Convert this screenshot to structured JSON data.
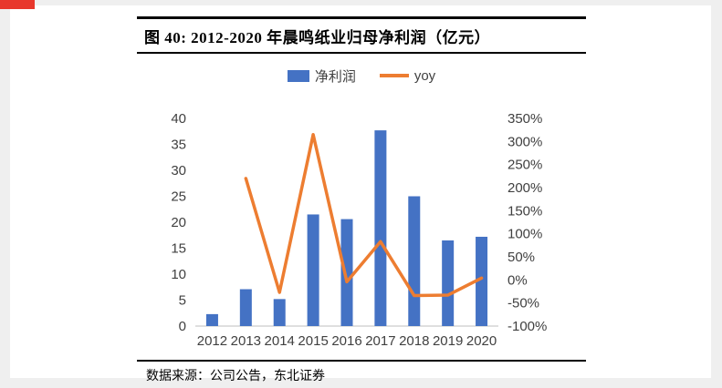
{
  "figure": {
    "title": "图 40:  2012-2020 年晨鸣纸业归母净利润（亿元）",
    "source": "数据来源：公司公告，东北证券"
  },
  "colors": {
    "bar": "#4472c4",
    "line": "#ed7d31",
    "accent_red": "#e8372c",
    "axis_text": "#404040",
    "axis_line": "#bfbfbf"
  },
  "chart_data": {
    "type": "combo",
    "title": "2012-2020 年晨鸣纸业归母净利润（亿元）",
    "categories": [
      "2012",
      "2013",
      "2014",
      "2015",
      "2016",
      "2017",
      "2018",
      "2019",
      "2020"
    ],
    "series": [
      {
        "name": "净利润",
        "type": "bar",
        "axis": "left",
        "color": "#4472c4",
        "values": [
          2.3,
          7.1,
          5.2,
          21.5,
          20.6,
          37.7,
          25.0,
          16.5,
          17.2
        ]
      },
      {
        "name": "yoy",
        "type": "line",
        "axis": "right",
        "color": "#ed7d31",
        "values": [
          null,
          220,
          -27,
          315,
          -4,
          83,
          -34,
          -33,
          4
        ]
      }
    ],
    "left_axis": {
      "min": 0,
      "max": 40,
      "step": 5
    },
    "right_axis": {
      "min": -100,
      "max": 350,
      "step": 50,
      "format": "percent"
    },
    "legend_position": "top",
    "grid": false
  }
}
